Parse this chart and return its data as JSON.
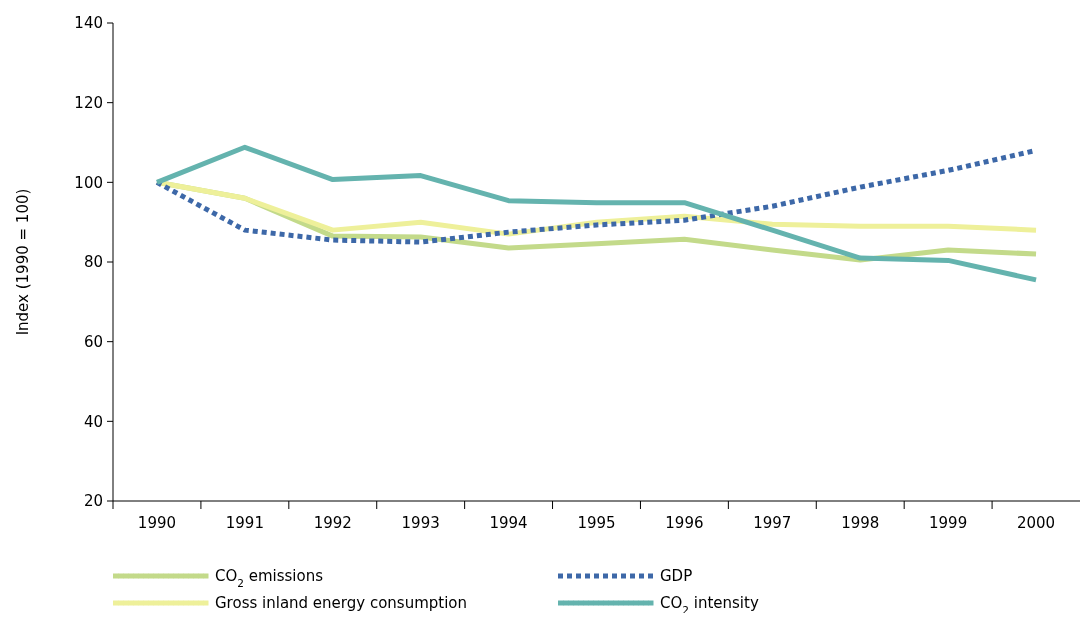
{
  "chart_data": {
    "type": "line",
    "ylabel": "Index (1990 = 100)",
    "categories": [
      "1990",
      "1991",
      "1992",
      "1993",
      "1994",
      "1995",
      "1996",
      "1997",
      "1998",
      "1999",
      "2000"
    ],
    "series": [
      {
        "name": "CO$_{2}$ emissions",
        "color": "#c3da8a",
        "line_style": "solid",
        "values": [
          100,
          96,
          86.5,
          86.3,
          83.5,
          84.6,
          85.7,
          83,
          80.5,
          83,
          82
        ]
      },
      {
        "name": "Gross inland energy consumption",
        "color": "#eef09a",
        "line_style": "solid",
        "values": [
          100,
          96,
          88,
          90,
          87,
          90,
          91.5,
          89.5,
          89,
          89,
          88
        ]
      },
      {
        "name": "GDP",
        "color": "#3d68a8",
        "line_style": "dotted",
        "values": [
          100,
          88,
          85.5,
          85,
          87.5,
          89.3,
          90.5,
          94,
          98.8,
          103,
          108
        ]
      },
      {
        "name": "CO$_{2}$ intensity",
        "color": "#64b3ae",
        "line_style": "solid",
        "values": [
          100,
          108.8,
          100.7,
          101.7,
          95.4,
          94.9,
          94.9,
          88,
          81,
          80.4,
          75.5
        ]
      }
    ],
    "ylim": [
      20,
      140
    ],
    "yticks": [
      20,
      40,
      60,
      80,
      100,
      120,
      140
    ],
    "grid": false,
    "legend": "bottom",
    "marker": "none"
  }
}
